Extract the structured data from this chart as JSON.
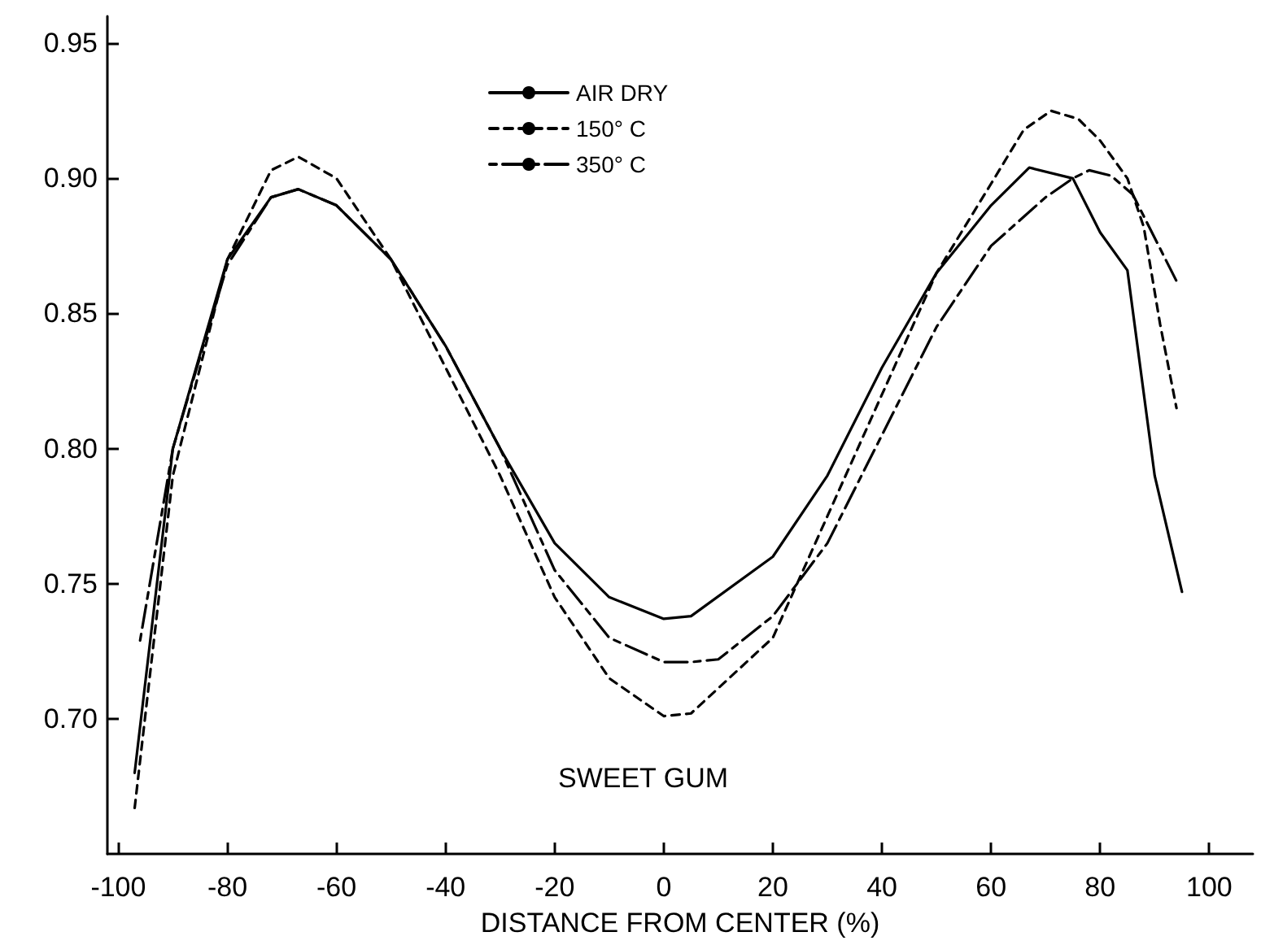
{
  "chart_data": {
    "type": "line",
    "xlabel": "DISTANCE FROM CENTER (%)",
    "annotations": [
      "SWEET GUM"
    ],
    "xlim": [
      -102,
      108
    ],
    "xticks": [
      -100,
      -80,
      -60,
      -40,
      -20,
      0,
      20,
      40,
      60,
      80,
      100
    ],
    "ylim": [
      0.65,
      0.96
    ],
    "yticks": [
      {
        "value": 0.7,
        "label": "0.70"
      },
      {
        "value": 0.75,
        "label": "0.75"
      },
      {
        "value": 0.8,
        "label": "0.80"
      },
      {
        "value": 0.85,
        "label": "0.85"
      },
      {
        "value": 0.9,
        "label": "0.90"
      },
      {
        "value": 0.95,
        "label": "0.95"
      }
    ],
    "grid": false,
    "legend": "top",
    "marker": "none",
    "series": [
      {
        "name": "AIR DRY",
        "color": "#000000",
        "line_style": "solid",
        "x": [
          -97,
          -90,
          -80,
          -72,
          -67,
          -60,
          -50,
          -40,
          -30,
          -20,
          -10,
          0,
          5,
          20,
          30,
          40,
          50,
          60,
          67,
          75,
          80,
          85,
          90,
          95
        ],
        "values": [
          0.68,
          0.8,
          0.87,
          0.893,
          0.896,
          0.89,
          0.87,
          0.838,
          0.8,
          0.765,
          0.745,
          0.737,
          0.738,
          0.76,
          0.79,
          0.83,
          0.865,
          0.89,
          0.904,
          0.9,
          0.88,
          0.866,
          0.79,
          0.747
        ]
      },
      {
        "name": "150° C",
        "color": "#000000",
        "line_style": "dashed",
        "x": [
          -97,
          -90,
          -80,
          -72,
          -67,
          -60,
          -50,
          -40,
          -30,
          -20,
          -10,
          0,
          5,
          20,
          30,
          40,
          50,
          60,
          66,
          71,
          76,
          80,
          85,
          88,
          91,
          94
        ],
        "values": [
          0.667,
          0.79,
          0.87,
          0.903,
          0.908,
          0.9,
          0.87,
          0.83,
          0.79,
          0.745,
          0.715,
          0.701,
          0.702,
          0.73,
          0.775,
          0.82,
          0.865,
          0.898,
          0.918,
          0.925,
          0.922,
          0.914,
          0.9,
          0.882,
          0.846,
          0.815
        ]
      },
      {
        "name": "350° C",
        "color": "#000000",
        "line_style": "dashdot",
        "x": [
          -96,
          -90,
          -80,
          -72,
          -67,
          -60,
          -50,
          -40,
          -30,
          -20,
          -10,
          0,
          5,
          10,
          20,
          30,
          40,
          50,
          60,
          70,
          75,
          78,
          82,
          86,
          90,
          94
        ],
        "values": [
          0.729,
          0.8,
          0.868,
          0.893,
          0.896,
          0.89,
          0.87,
          0.838,
          0.8,
          0.755,
          0.73,
          0.721,
          0.721,
          0.722,
          0.738,
          0.765,
          0.805,
          0.845,
          0.875,
          0.893,
          0.9,
          0.903,
          0.901,
          0.894,
          0.878,
          0.862
        ]
      }
    ]
  }
}
